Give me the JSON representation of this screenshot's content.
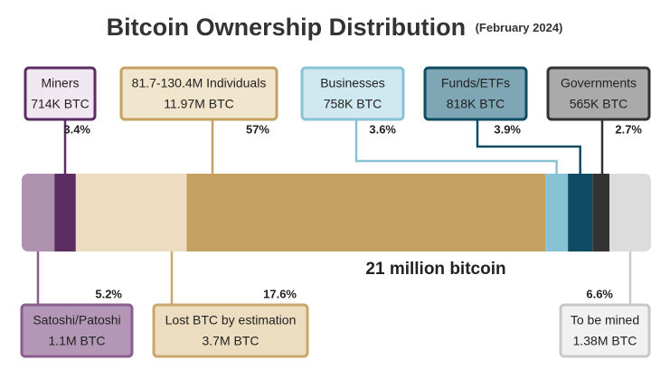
{
  "chart_data": {
    "type": "stacked_bar",
    "title": "Bitcoin Ownership Distribution",
    "subtitle": "(February 2024)",
    "total_label": "21 million bitcoin",
    "categories": [
      "Satoshi/Patoshi",
      "Miners",
      "Lost BTC by estimation",
      "81.7-130.4M Individuals",
      "Businesses",
      "Funds/ETFs",
      "Governments",
      "To be mined"
    ],
    "amounts": [
      "1.1M BTC",
      "714K BTC",
      "3.7M BTC",
      "11.97M BTC",
      "758K BTC",
      "818K BTC",
      "565K BTC",
      "1.38M BTC"
    ],
    "values": [
      5.2,
      3.4,
      17.6,
      57,
      3.6,
      3.9,
      2.7,
      6.6
    ],
    "value_labels": [
      "5.2%",
      "3.4%",
      "17.6%",
      "57%",
      "3.6%",
      "3.9%",
      "2.7%",
      "6.6%"
    ],
    "colors": [
      "#ae92af",
      "#5c2d62",
      "#eddcc0",
      "#c4a062",
      "#87c3d4",
      "#0f4c63",
      "#333333",
      "#dcdcdc"
    ],
    "box_fills": [
      "#b497b7",
      "#f1e7f1",
      "#ecdcc0",
      "#f2e5cd",
      "#d0e8ef",
      "#7fa6b5",
      "#aaaaaa",
      "#f1f1f1"
    ],
    "box_borders": [
      "#8a5f8d",
      "#5c2d62",
      "#c9a76b",
      "#c4a062",
      "#87c3d4",
      "#0f4c63",
      "#333333",
      "#c8c8c8"
    ]
  }
}
